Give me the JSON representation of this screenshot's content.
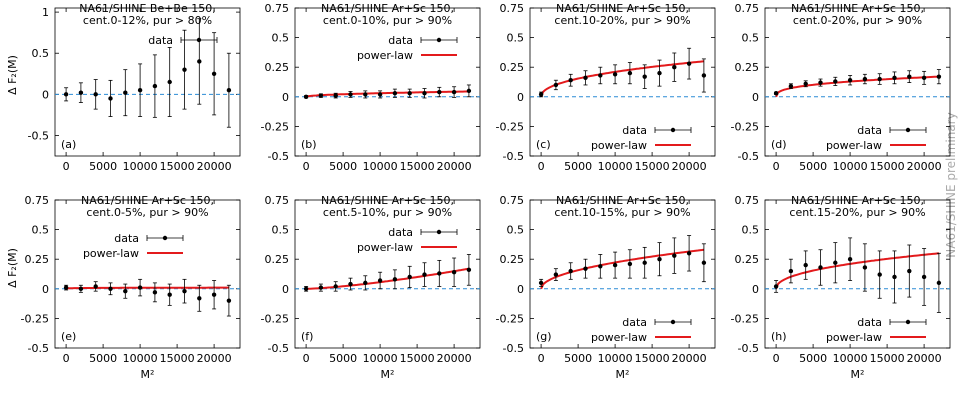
{
  "figure": {
    "y_axis_label": "Δ F₂(M)",
    "x_axis_label": "M²",
    "watermark": "NA61/SHINE preliminary"
  },
  "chart_data": [
    {
      "type": "scatter",
      "panel_label": "(a)",
      "title_lines": [
        "NA61/SHINE Be+Be 150,",
        "cent.0-12%, pur > 80%"
      ],
      "xlabel": "M²",
      "ylabel": "Δ F₂(M)",
      "xlim": [
        -1500,
        23500
      ],
      "ylim": [
        -0.75,
        1.05
      ],
      "yticks": [
        -0.5,
        0,
        0.5,
        1
      ],
      "ytick_labels": [
        "-0.5",
        "0",
        "0.5",
        "1"
      ],
      "xticks": [
        0,
        5000,
        10000,
        15000,
        20000
      ],
      "xtick_labels": [
        "0",
        "5000",
        "10000",
        "15000",
        "20000"
      ],
      "legend": [
        "data"
      ],
      "legend_position": "top-center",
      "zero_reference_line": true,
      "series": [
        {
          "kind": "points_with_errorbars",
          "x": [
            0,
            2000,
            4000,
            6000,
            8000,
            10000,
            12000,
            14000,
            16000,
            18000,
            20000,
            22000
          ],
          "y": [
            0.0,
            0.02,
            0.0,
            -0.05,
            0.02,
            0.05,
            0.1,
            0.15,
            0.3,
            0.4,
            0.25,
            0.05
          ],
          "err": [
            0.08,
            0.12,
            0.18,
            0.22,
            0.28,
            0.32,
            0.38,
            0.42,
            0.48,
            0.52,
            0.5,
            0.45
          ]
        }
      ]
    },
    {
      "type": "scatter",
      "panel_label": "(b)",
      "title_lines": [
        "NA61/SHINE Ar+Sc 150,",
        "cent.0-10%, pur > 90%"
      ],
      "xlabel": "M²",
      "ylabel": "Δ F₂(M)",
      "xlim": [
        -1500,
        23500
      ],
      "ylim": [
        -0.5,
        0.75
      ],
      "yticks": [
        -0.5,
        -0.25,
        0,
        0.25,
        0.5,
        0.75
      ],
      "ytick_labels": [
        "-0.5",
        "-0.25",
        "0",
        "0.25",
        "0.5",
        "0.75"
      ],
      "xticks": [
        0,
        5000,
        10000,
        15000,
        20000
      ],
      "xtick_labels": [
        "0",
        "5000",
        "10000",
        "15000",
        "20000"
      ],
      "legend": [
        "data",
        "power-law"
      ],
      "legend_position": "top-center",
      "zero_reference_line": true,
      "series": [
        {
          "kind": "points_with_errorbars",
          "x": [
            0,
            2000,
            4000,
            6000,
            8000,
            10000,
            12000,
            14000,
            16000,
            18000,
            20000,
            22000
          ],
          "y": [
            0.0,
            0.01,
            0.01,
            0.02,
            0.02,
            0.02,
            0.03,
            0.03,
            0.03,
            0.04,
            0.04,
            0.05
          ],
          "err": [
            0.01,
            0.015,
            0.02,
            0.025,
            0.03,
            0.03,
            0.035,
            0.035,
            0.04,
            0.04,
            0.045,
            0.05
          ]
        },
        {
          "kind": "fit_line",
          "x0": 0,
          "x1": 22000,
          "amplitude": 0.045,
          "exponent": 0.5
        }
      ]
    },
    {
      "type": "scatter",
      "panel_label": "(c)",
      "title_lines": [
        "NA61/SHINE Ar+Sc 150,",
        "cent.10-20%, pur > 90%"
      ],
      "xlabel": "M²",
      "ylabel": "Δ F₂(M)",
      "xlim": [
        -1500,
        23500
      ],
      "ylim": [
        -0.5,
        0.75
      ],
      "yticks": [
        -0.5,
        -0.25,
        0,
        0.25,
        0.5,
        0.75
      ],
      "ytick_labels": [
        "-0.5",
        "-0.25",
        "0",
        "0.25",
        "0.5",
        "0.75"
      ],
      "xticks": [
        0,
        5000,
        10000,
        15000,
        20000
      ],
      "xtick_labels": [
        "0",
        "5000",
        "10000",
        "15000",
        "20000"
      ],
      "legend": [
        "data",
        "power-law"
      ],
      "legend_position": "bottom-right",
      "zero_reference_line": true,
      "series": [
        {
          "kind": "points_with_errorbars",
          "x": [
            0,
            2000,
            4000,
            6000,
            8000,
            10000,
            12000,
            14000,
            16000,
            18000,
            20000,
            22000
          ],
          "y": [
            0.02,
            0.1,
            0.14,
            0.16,
            0.18,
            0.19,
            0.2,
            0.17,
            0.2,
            0.25,
            0.28,
            0.18
          ],
          "err": [
            0.02,
            0.04,
            0.05,
            0.06,
            0.07,
            0.08,
            0.09,
            0.1,
            0.11,
            0.12,
            0.13,
            0.14
          ]
        },
        {
          "kind": "fit_line",
          "x0": 0,
          "x1": 22000,
          "amplitude": 0.3,
          "exponent": 0.45
        }
      ]
    },
    {
      "type": "scatter",
      "panel_label": "(d)",
      "title_lines": [
        "NA61/SHINE Ar+Sc 150,",
        "cent.0-20%, pur > 90%"
      ],
      "xlabel": "M²",
      "ylabel": "Δ F₂(M)",
      "xlim": [
        -1500,
        23500
      ],
      "ylim": [
        -0.5,
        0.75
      ],
      "yticks": [
        -0.5,
        -0.25,
        0,
        0.25,
        0.5,
        0.75
      ],
      "ytick_labels": [
        "-0.5",
        "-0.25",
        "0",
        "0.25",
        "0.5",
        "0.75"
      ],
      "xticks": [
        0,
        5000,
        10000,
        15000,
        20000
      ],
      "xtick_labels": [
        "0",
        "5000",
        "10000",
        "15000",
        "20000"
      ],
      "legend": [
        "data",
        "power-law"
      ],
      "legend_position": "bottom-right",
      "zero_reference_line": true,
      "series": [
        {
          "kind": "points_with_errorbars",
          "x": [
            0,
            2000,
            4000,
            6000,
            8000,
            10000,
            12000,
            14000,
            16000,
            18000,
            20000,
            22000
          ],
          "y": [
            0.03,
            0.09,
            0.11,
            0.12,
            0.13,
            0.14,
            0.15,
            0.15,
            0.16,
            0.17,
            0.16,
            0.17
          ],
          "err": [
            0.01,
            0.02,
            0.025,
            0.03,
            0.035,
            0.04,
            0.04,
            0.045,
            0.05,
            0.05,
            0.055,
            0.06
          ]
        },
        {
          "kind": "fit_line",
          "x0": 0,
          "x1": 22000,
          "amplitude": 0.17,
          "exponent": 0.35
        }
      ]
    },
    {
      "type": "scatter",
      "panel_label": "(e)",
      "title_lines": [
        "NA61/SHINE Ar+Sc 150,",
        "cent.0-5%, pur > 90%"
      ],
      "xlabel": "M²",
      "ylabel": "Δ F₂(M)",
      "xlim": [
        -1500,
        23500
      ],
      "ylim": [
        -0.5,
        0.75
      ],
      "yticks": [
        -0.5,
        -0.25,
        0,
        0.25,
        0.5,
        0.75
      ],
      "ytick_labels": [
        "-0.5",
        "-0.25",
        "0",
        "0.25",
        "0.5",
        "0.75"
      ],
      "xticks": [
        0,
        5000,
        10000,
        15000,
        20000
      ],
      "xtick_labels": [
        "0",
        "5000",
        "10000",
        "15000",
        "20000"
      ],
      "legend": [
        "data",
        "power-law"
      ],
      "legend_position": "top-left",
      "zero_reference_line": true,
      "series": [
        {
          "kind": "points_with_errorbars",
          "x": [
            0,
            2000,
            4000,
            6000,
            8000,
            10000,
            12000,
            14000,
            16000,
            18000,
            20000,
            22000
          ],
          "y": [
            0.01,
            0.0,
            0.02,
            0.0,
            -0.02,
            0.01,
            -0.03,
            -0.05,
            -0.02,
            -0.08,
            -0.05,
            -0.1
          ],
          "err": [
            0.02,
            0.03,
            0.04,
            0.05,
            0.06,
            0.07,
            0.08,
            0.09,
            0.1,
            0.11,
            0.12,
            0.13
          ]
        },
        {
          "kind": "fit_line",
          "x0": 0,
          "x1": 22000,
          "amplitude": 0.01,
          "exponent": 0.2
        }
      ]
    },
    {
      "type": "scatter",
      "panel_label": "(f)",
      "title_lines": [
        "NA61/SHINE Ar+Sc 150,",
        "cent.5-10%, pur > 90%"
      ],
      "xlabel": "M²",
      "ylabel": "Δ F₂(M)",
      "xlim": [
        -1500,
        23500
      ],
      "ylim": [
        -0.5,
        0.75
      ],
      "yticks": [
        -0.5,
        -0.25,
        0,
        0.25,
        0.5,
        0.75
      ],
      "ytick_labels": [
        "-0.5",
        "-0.25",
        "0",
        "0.25",
        "0.5",
        "0.75"
      ],
      "xticks": [
        0,
        5000,
        10000,
        15000,
        20000
      ],
      "xtick_labels": [
        "0",
        "5000",
        "10000",
        "15000",
        "20000"
      ],
      "legend": [
        "data",
        "power-law"
      ],
      "legend_position": "top-center",
      "zero_reference_line": true,
      "series": [
        {
          "kind": "points_with_errorbars",
          "x": [
            0,
            2000,
            4000,
            6000,
            8000,
            10000,
            12000,
            14000,
            16000,
            18000,
            20000,
            22000
          ],
          "y": [
            0.0,
            0.01,
            0.02,
            0.04,
            0.05,
            0.07,
            0.08,
            0.1,
            0.12,
            0.13,
            0.14,
            0.16
          ],
          "err": [
            0.02,
            0.03,
            0.04,
            0.05,
            0.06,
            0.07,
            0.08,
            0.09,
            0.1,
            0.11,
            0.12,
            0.13
          ]
        },
        {
          "kind": "fit_line",
          "x0": 0,
          "x1": 22000,
          "amplitude": 0.17,
          "exponent": 1.4
        }
      ]
    },
    {
      "type": "scatter",
      "panel_label": "(g)",
      "title_lines": [
        "NA61/SHINE Ar+Sc 150,",
        "cent.10-15%, pur > 90%"
      ],
      "xlabel": "M²",
      "ylabel": "Δ F₂(M)",
      "xlim": [
        -1500,
        23500
      ],
      "ylim": [
        -0.5,
        0.75
      ],
      "yticks": [
        -0.5,
        -0.25,
        0,
        0.25,
        0.5,
        0.75
      ],
      "ytick_labels": [
        "-0.5",
        "-0.25",
        "0",
        "0.25",
        "0.5",
        "0.75"
      ],
      "xticks": [
        0,
        5000,
        10000,
        15000,
        20000
      ],
      "xtick_labels": [
        "0",
        "5000",
        "10000",
        "15000",
        "20000"
      ],
      "legend": [
        "data",
        "power-law"
      ],
      "legend_position": "bottom-right",
      "zero_reference_line": true,
      "series": [
        {
          "kind": "points_with_errorbars",
          "x": [
            0,
            2000,
            4000,
            6000,
            8000,
            10000,
            12000,
            14000,
            16000,
            18000,
            20000,
            22000
          ],
          "y": [
            0.05,
            0.12,
            0.15,
            0.17,
            0.19,
            0.2,
            0.21,
            0.22,
            0.25,
            0.28,
            0.3,
            0.22
          ],
          "err": [
            0.03,
            0.05,
            0.07,
            0.08,
            0.1,
            0.11,
            0.12,
            0.13,
            0.14,
            0.15,
            0.15,
            0.16
          ]
        },
        {
          "kind": "fit_line",
          "x0": 0,
          "x1": 22000,
          "amplitude": 0.33,
          "exponent": 0.5
        }
      ]
    },
    {
      "type": "scatter",
      "panel_label": "(h)",
      "title_lines": [
        "NA61/SHINE Ar+Sc 150,",
        "cent.15-20%, pur > 90%"
      ],
      "xlabel": "M²",
      "ylabel": "Δ F₂(M)",
      "xlim": [
        -1500,
        23500
      ],
      "ylim": [
        -0.5,
        0.75
      ],
      "yticks": [
        -0.5,
        -0.25,
        0,
        0.25,
        0.5,
        0.75
      ],
      "ytick_labels": [
        "-0.5",
        "-0.25",
        "0",
        "0.25",
        "0.5",
        "0.75"
      ],
      "xticks": [
        0,
        5000,
        10000,
        15000,
        20000
      ],
      "xtick_labels": [
        "0",
        "5000",
        "10000",
        "15000",
        "20000"
      ],
      "legend": [
        "data",
        "power-law"
      ],
      "legend_position": "bottom-right",
      "zero_reference_line": true,
      "series": [
        {
          "kind": "points_with_errorbars",
          "x": [
            0,
            2000,
            4000,
            6000,
            8000,
            10000,
            12000,
            14000,
            16000,
            18000,
            20000,
            22000
          ],
          "y": [
            0.02,
            0.15,
            0.2,
            0.18,
            0.22,
            0.25,
            0.18,
            0.12,
            0.1,
            0.15,
            0.1,
            0.05
          ],
          "err": [
            0.05,
            0.1,
            0.12,
            0.15,
            0.17,
            0.18,
            0.2,
            0.2,
            0.22,
            0.22,
            0.24,
            0.25
          ]
        },
        {
          "kind": "fit_line",
          "x0": 0,
          "x1": 22000,
          "amplitude": 0.3,
          "exponent": 0.45
        }
      ]
    }
  ]
}
